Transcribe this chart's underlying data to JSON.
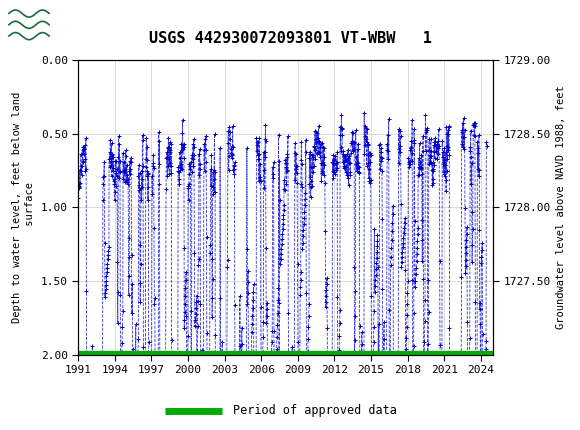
{
  "title": "USGS 442930072093801 VT-WBW   1",
  "ylabel_left": "Depth to water level, feet below land\n surface",
  "ylabel_right": "Groundwater level above NAVD 1988, feet",
  "ylim_left": [
    2.0,
    0.0
  ],
  "ylim_right": [
    1727.0,
    1729.0
  ],
  "xlim": [
    1991,
    2025
  ],
  "yticks_left": [
    0.0,
    0.5,
    1.0,
    1.5,
    2.0
  ],
  "yticks_right": [
    1729.0,
    1728.5,
    1728.0,
    1727.5
  ],
  "xticks": [
    1991,
    1994,
    1997,
    2000,
    2003,
    2006,
    2009,
    2012,
    2015,
    2018,
    2021,
    2024
  ],
  "header_color": "#1a6b3c",
  "data_color": "#0000cc",
  "approved_color": "#00aa00",
  "plot_bg_color": "#ffffff",
  "grid_color": "#cccccc",
  "title_fontsize": 11,
  "tick_fontsize": 8,
  "label_fontsize": 7.5
}
